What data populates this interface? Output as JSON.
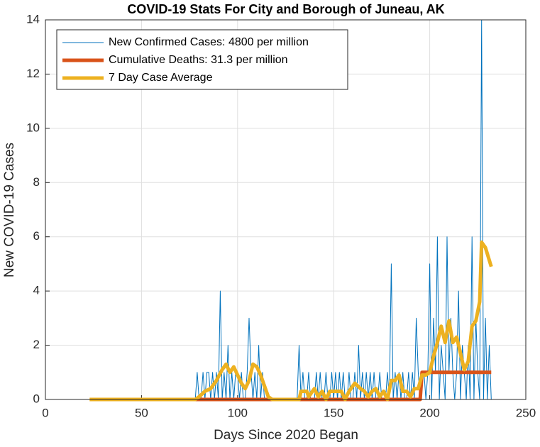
{
  "chart_data": {
    "type": "line",
    "title": "COVID-19 Stats For City and Borough of Juneau, AK",
    "xlabel": "Days Since 2020 Began",
    "ylabel": "New COVID-19 Cases",
    "xlim": [
      0,
      250
    ],
    "xticks": [
      0,
      50,
      100,
      150,
      200,
      250
    ],
    "ylim": [
      0,
      14
    ],
    "yticks": [
      0,
      2,
      4,
      6,
      8,
      10,
      12,
      14
    ],
    "grid": true,
    "legend": "northwest",
    "series": [
      {
        "name": "New Confirmed Cases: 4800 per million",
        "color": "#0072BD",
        "width": 1,
        "x": [
          23,
          78,
          79,
          80,
          81,
          82,
          83,
          84,
          85,
          86,
          87,
          88,
          89,
          90,
          91,
          92,
          93,
          94,
          95,
          96,
          97,
          98,
          99,
          100,
          101,
          102,
          103,
          104,
          105,
          106,
          107,
          108,
          109,
          110,
          111,
          112,
          113,
          114,
          115,
          116,
          117,
          118,
          119,
          120,
          121,
          122,
          123,
          124,
          125,
          126,
          127,
          128,
          129,
          130,
          131,
          132,
          133,
          134,
          135,
          136,
          137,
          138,
          139,
          140,
          141,
          142,
          143,
          144,
          145,
          146,
          147,
          148,
          149,
          150,
          151,
          152,
          153,
          154,
          155,
          156,
          157,
          158,
          159,
          160,
          161,
          162,
          163,
          164,
          165,
          166,
          167,
          168,
          169,
          170,
          171,
          172,
          173,
          174,
          175,
          176,
          177,
          178,
          179,
          180,
          181,
          182,
          183,
          184,
          185,
          186,
          187,
          188,
          189,
          190,
          191,
          192,
          193,
          194,
          195,
          196,
          197,
          198,
          199,
          200,
          201,
          202,
          203,
          204,
          205,
          206,
          207,
          208,
          209,
          210,
          211,
          212,
          213,
          214,
          215,
          216,
          217,
          218,
          219,
          220,
          221,
          222,
          223,
          224,
          225,
          226,
          227,
          228,
          229,
          230,
          231,
          232
        ],
        "values": [
          0,
          0,
          1,
          0,
          0,
          1,
          0,
          1,
          1,
          0,
          1,
          0,
          1,
          0,
          4,
          0,
          1,
          0,
          2,
          0,
          1,
          0,
          1,
          1,
          0,
          1,
          0,
          0,
          1,
          3,
          1,
          0,
          1,
          0,
          2,
          0,
          1,
          0,
          0,
          0,
          0,
          0,
          0,
          0,
          0,
          0,
          0,
          0,
          0,
          0,
          0,
          0,
          0,
          0,
          0,
          2,
          0,
          1,
          0,
          0,
          1,
          0,
          0,
          0,
          1,
          0,
          1,
          0,
          0,
          1,
          0,
          0,
          1,
          0,
          1,
          0,
          1,
          0,
          1,
          0,
          0,
          1,
          0,
          0,
          1,
          0,
          2,
          0,
          1,
          0,
          1,
          0,
          1,
          0,
          1,
          0,
          0,
          1,
          0,
          0,
          0,
          1,
          0,
          5,
          0,
          1,
          0,
          1,
          0,
          1,
          0,
          0,
          1,
          0,
          1,
          0,
          3,
          1,
          0,
          1,
          1,
          0,
          1,
          5,
          0,
          3,
          1,
          6,
          0,
          2,
          1,
          0,
          6,
          1,
          3,
          1,
          0,
          1,
          4,
          0,
          2,
          1,
          0,
          2,
          0,
          6,
          0,
          3,
          1,
          0,
          14,
          0,
          3,
          0,
          2,
          0
        ]
      },
      {
        "name": "Cumulative Deaths: 31.3 per million",
        "color": "#D95319",
        "width": 5,
        "x": [
          78,
          195,
          196,
          232
        ],
        "values": [
          0,
          0,
          1,
          1
        ]
      },
      {
        "name": "7 Day Case Average",
        "color": "#EDB120",
        "width": 5,
        "x": [
          23,
          78,
          80,
          83,
          86,
          89,
          92,
          94,
          96,
          98,
          100,
          102,
          104,
          106,
          108,
          110,
          112,
          114,
          116,
          118,
          132,
          133,
          136,
          137,
          140,
          142,
          144,
          146,
          148,
          154,
          156,
          158,
          161,
          164,
          166,
          168,
          170,
          172,
          174,
          176,
          178,
          180,
          182,
          184,
          186,
          188,
          190,
          192,
          194,
          196,
          198,
          200,
          202,
          204,
          206,
          208,
          210,
          212,
          214,
          216,
          218,
          220,
          222,
          224,
          226,
          227,
          229,
          232
        ],
        "values": [
          0,
          0,
          0.1,
          0.3,
          0.4,
          0.7,
          1.1,
          1.3,
          1.0,
          1.2,
          0.9,
          0.6,
          0.4,
          0.7,
          1.3,
          1.2,
          0.9,
          0.5,
          0.1,
          0,
          0,
          0.3,
          0.3,
          0.1,
          0.4,
          0.1,
          0.3,
          0,
          0.3,
          0.3,
          0,
          0.3,
          0.6,
          0.4,
          0.3,
          0.1,
          0.3,
          0.4,
          0.1,
          0.3,
          0,
          0.7,
          0.7,
          0.9,
          0.3,
          0.3,
          0.1,
          0.4,
          0.4,
          0.9,
          0.9,
          1.0,
          1.6,
          2.1,
          2.7,
          2.1,
          2.9,
          2.1,
          2.3,
          1.7,
          1.1,
          1.4,
          2.7,
          2.9,
          3.6,
          5.8,
          5.6,
          4.9
        ]
      }
    ]
  }
}
